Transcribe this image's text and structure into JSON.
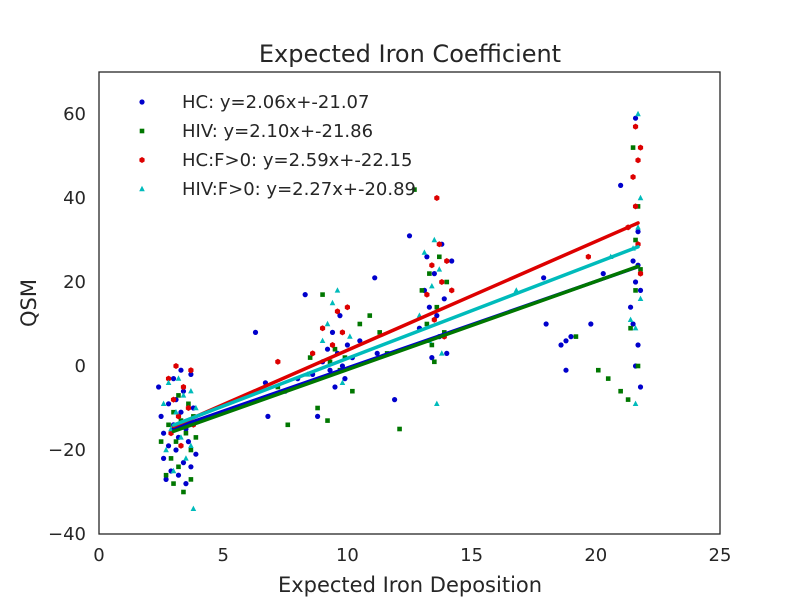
{
  "chart_data": {
    "type": "scatter",
    "title": "Expected Iron Coefficient",
    "xlabel": "Expected Iron Deposition",
    "ylabel": "QSM",
    "xlim": [
      0,
      25
    ],
    "ylim": [
      -40,
      70
    ],
    "xticks": [
      0,
      5,
      10,
      15,
      20,
      25
    ],
    "yticks": [
      -40,
      -20,
      0,
      20,
      40,
      60
    ],
    "xtick_labels": [
      "0",
      "5",
      "10",
      "15",
      "20",
      "25"
    ],
    "ytick_labels": [
      "−40",
      "−20",
      "0",
      "20",
      "40",
      "60"
    ],
    "grid": false,
    "legend_position": "top-left",
    "series": [
      {
        "name": "HC: y=2.06x+-21.07",
        "color": "#0000cc",
        "marker": "circle",
        "fit": {
          "slope": 2.06,
          "intercept": -21.07,
          "x_range": [
            3.0,
            21.7
          ]
        },
        "points": [
          [
            2.4,
            -5
          ],
          [
            2.5,
            -12
          ],
          [
            2.6,
            -16
          ],
          [
            2.6,
            -22
          ],
          [
            2.7,
            -27
          ],
          [
            2.8,
            -19
          ],
          [
            2.8,
            -9
          ],
          [
            2.9,
            -25
          ],
          [
            3.0,
            -14
          ],
          [
            3.0,
            -3
          ],
          [
            3.1,
            -20
          ],
          [
            3.1,
            -8
          ],
          [
            3.2,
            -26
          ],
          [
            3.2,
            -17
          ],
          [
            3.3,
            -11
          ],
          [
            3.3,
            -1
          ],
          [
            3.4,
            -23
          ],
          [
            3.4,
            -6
          ],
          [
            3.5,
            -15
          ],
          [
            3.5,
            -28
          ],
          [
            3.6,
            -18
          ],
          [
            3.7,
            -24
          ],
          [
            3.7,
            -2
          ],
          [
            3.8,
            -10
          ],
          [
            3.9,
            -21
          ],
          [
            6.3,
            8
          ],
          [
            6.7,
            -4
          ],
          [
            6.8,
            -12
          ],
          [
            7.5,
            -6
          ],
          [
            8.0,
            -3
          ],
          [
            8.3,
            17
          ],
          [
            8.6,
            -2
          ],
          [
            8.8,
            -12
          ],
          [
            9.0,
            1
          ],
          [
            9.2,
            4
          ],
          [
            9.3,
            -1
          ],
          [
            9.4,
            8
          ],
          [
            9.5,
            -5
          ],
          [
            9.6,
            3
          ],
          [
            9.7,
            12
          ],
          [
            9.8,
            0
          ],
          [
            9.9,
            -3
          ],
          [
            10.0,
            5
          ],
          [
            10.2,
            2
          ],
          [
            10.5,
            6
          ],
          [
            11.1,
            21
          ],
          [
            11.2,
            3
          ],
          [
            11.9,
            -8
          ],
          [
            12.5,
            31
          ],
          [
            12.9,
            9
          ],
          [
            13.1,
            18
          ],
          [
            13.2,
            26
          ],
          [
            13.3,
            14
          ],
          [
            13.4,
            2
          ],
          [
            13.5,
            22
          ],
          [
            13.6,
            12
          ],
          [
            13.7,
            7
          ],
          [
            13.8,
            29
          ],
          [
            13.9,
            16
          ],
          [
            14.0,
            3
          ],
          [
            14.2,
            25
          ],
          [
            17.9,
            21
          ],
          [
            18.0,
            10
          ],
          [
            18.6,
            5
          ],
          [
            18.8,
            6
          ],
          [
            18.8,
            -1
          ],
          [
            19.0,
            7
          ],
          [
            19.8,
            10
          ],
          [
            20.3,
            22
          ],
          [
            21.0,
            43
          ],
          [
            21.4,
            14
          ],
          [
            21.5,
            25
          ],
          [
            21.5,
            10
          ],
          [
            21.6,
            20
          ],
          [
            21.6,
            59
          ],
          [
            21.7,
            32
          ],
          [
            21.7,
            5
          ],
          [
            21.7,
            24
          ],
          [
            21.8,
            -5
          ],
          [
            21.8,
            18
          ],
          [
            21.6,
            0
          ]
        ]
      },
      {
        "name": "HIV: y=2.10x+-21.86",
        "color": "#007700",
        "marker": "square",
        "fit": {
          "slope": 2.1,
          "intercept": -21.86,
          "x_range": [
            3.0,
            21.7
          ]
        },
        "points": [
          [
            2.5,
            -18
          ],
          [
            2.7,
            -26
          ],
          [
            2.8,
            -14
          ],
          [
            2.9,
            -22
          ],
          [
            3.0,
            -11
          ],
          [
            3.0,
            -28
          ],
          [
            3.1,
            -18
          ],
          [
            3.2,
            -7
          ],
          [
            3.2,
            -24
          ],
          [
            3.3,
            -13
          ],
          [
            3.4,
            -30
          ],
          [
            3.5,
            -16
          ],
          [
            3.6,
            -9
          ],
          [
            3.7,
            -27
          ],
          [
            3.7,
            -20
          ],
          [
            3.8,
            -12
          ],
          [
            3.9,
            -17
          ],
          [
            7.2,
            -5
          ],
          [
            7.6,
            -14
          ],
          [
            8.5,
            2
          ],
          [
            8.8,
            -10
          ],
          [
            9.0,
            17
          ],
          [
            9.2,
            -13
          ],
          [
            9.3,
            1
          ],
          [
            9.5,
            4
          ],
          [
            9.7,
            -1
          ],
          [
            9.9,
            2
          ],
          [
            10.2,
            -6
          ],
          [
            10.5,
            10
          ],
          [
            10.9,
            12
          ],
          [
            11.3,
            8
          ],
          [
            11.6,
            3
          ],
          [
            12.1,
            -15
          ],
          [
            12.7,
            42
          ],
          [
            13.0,
            18
          ],
          [
            13.2,
            10
          ],
          [
            13.3,
            22
          ],
          [
            13.4,
            5
          ],
          [
            13.5,
            1
          ],
          [
            13.6,
            14
          ],
          [
            13.7,
            26
          ],
          [
            13.9,
            8
          ],
          [
            14.0,
            20
          ],
          [
            19.2,
            7
          ],
          [
            20.1,
            -1
          ],
          [
            20.5,
            -3
          ],
          [
            21.0,
            -6
          ],
          [
            21.3,
            -8
          ],
          [
            21.4,
            9
          ],
          [
            21.5,
            52
          ],
          [
            21.6,
            18
          ],
          [
            21.6,
            30
          ],
          [
            21.7,
            0
          ],
          [
            21.8,
            23
          ],
          [
            21.7,
            38
          ]
        ]
      },
      {
        "name": "HC:F>0: y=2.59x+-22.15",
        "color": "#dd0000",
        "marker": "hexagon",
        "fit": {
          "slope": 2.59,
          "intercept": -22.15,
          "x_range": [
            3.0,
            21.7
          ]
        },
        "points": [
          [
            2.8,
            -3
          ],
          [
            2.9,
            -16
          ],
          [
            3.0,
            -8
          ],
          [
            3.1,
            0
          ],
          [
            3.2,
            -12
          ],
          [
            3.3,
            -19
          ],
          [
            3.4,
            -5
          ],
          [
            3.6,
            -10
          ],
          [
            3.7,
            -1
          ],
          [
            3.8,
            -14
          ],
          [
            7.2,
            1
          ],
          [
            8.6,
            3
          ],
          [
            9.0,
            9
          ],
          [
            9.4,
            5
          ],
          [
            9.6,
            13
          ],
          [
            9.8,
            8
          ],
          [
            10.0,
            14
          ],
          [
            13.2,
            17
          ],
          [
            13.4,
            24
          ],
          [
            13.5,
            11
          ],
          [
            13.6,
            40
          ],
          [
            13.7,
            29
          ],
          [
            13.8,
            20
          ],
          [
            13.9,
            7
          ],
          [
            14.0,
            25
          ],
          [
            14.2,
            18
          ],
          [
            19.7,
            26
          ],
          [
            21.3,
            33
          ],
          [
            21.5,
            45
          ],
          [
            21.6,
            38
          ],
          [
            21.6,
            57
          ],
          [
            21.7,
            49
          ],
          [
            21.7,
            29
          ],
          [
            21.8,
            22
          ],
          [
            21.8,
            52
          ]
        ]
      },
      {
        "name": "HIV:F>0: y=2.27x+-20.89",
        "color": "#00bbbb",
        "marker": "triangle",
        "fit": {
          "slope": 2.27,
          "intercept": -20.89,
          "x_range": [
            3.0,
            21.7
          ]
        },
        "points": [
          [
            2.6,
            -9
          ],
          [
            2.7,
            -20
          ],
          [
            2.8,
            -4
          ],
          [
            2.9,
            -15
          ],
          [
            3.0,
            -25
          ],
          [
            3.1,
            -11
          ],
          [
            3.2,
            -3
          ],
          [
            3.3,
            -17
          ],
          [
            3.4,
            -7
          ],
          [
            3.5,
            -22
          ],
          [
            3.6,
            -13
          ],
          [
            3.7,
            -19
          ],
          [
            3.7,
            -6
          ],
          [
            3.8,
            -34
          ],
          [
            3.9,
            -10
          ],
          [
            8.4,
            -2
          ],
          [
            9.0,
            6
          ],
          [
            9.2,
            10
          ],
          [
            9.4,
            15
          ],
          [
            9.6,
            18
          ],
          [
            9.8,
            -4
          ],
          [
            10.1,
            7
          ],
          [
            12.9,
            12
          ],
          [
            13.1,
            27
          ],
          [
            13.3,
            6
          ],
          [
            13.4,
            19
          ],
          [
            13.5,
            30
          ],
          [
            13.6,
            -9
          ],
          [
            13.7,
            23
          ],
          [
            13.8,
            3
          ],
          [
            16.8,
            18
          ],
          [
            20.6,
            26
          ],
          [
            21.4,
            11
          ],
          [
            21.5,
            28
          ],
          [
            21.6,
            9
          ],
          [
            21.6,
            -9
          ],
          [
            21.7,
            60
          ],
          [
            21.7,
            33
          ],
          [
            21.8,
            16
          ],
          [
            21.8,
            40
          ]
        ]
      }
    ]
  }
}
